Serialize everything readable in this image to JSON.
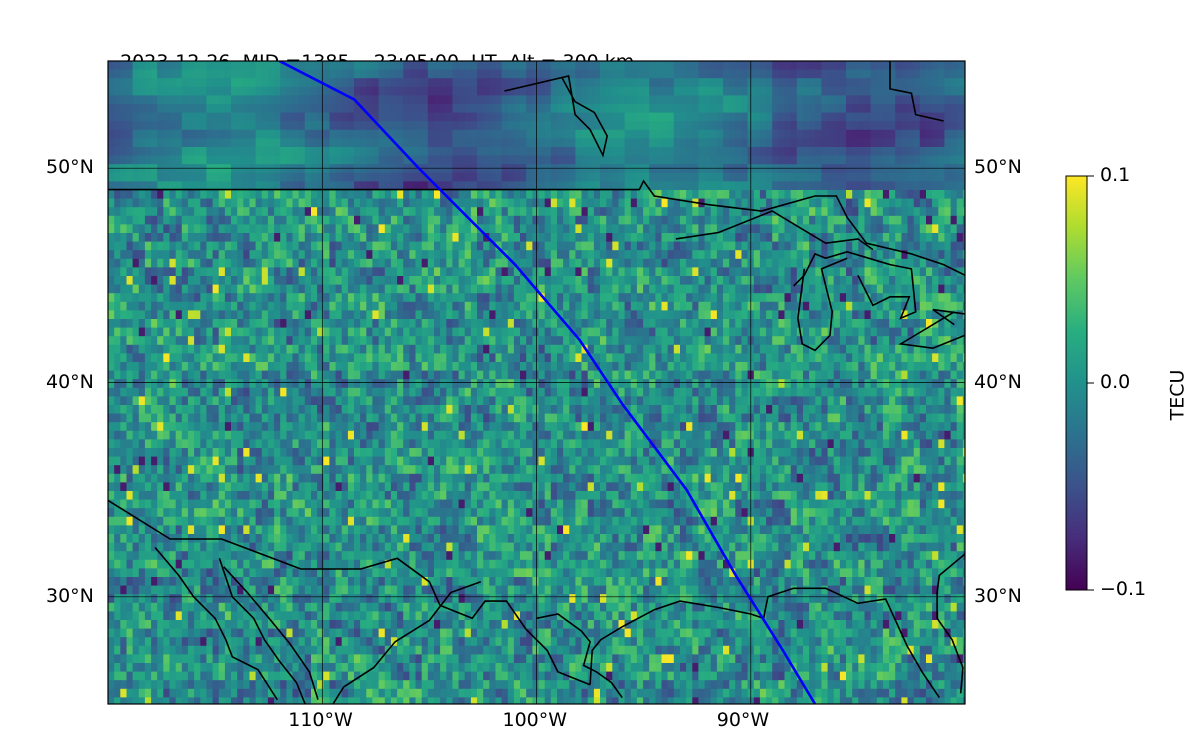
{
  "title": {
    "date": "2023-12-26",
    "mid": "MID =1385",
    "time": "23:05:00  UT",
    "alt": "Alt = 300 km"
  },
  "map": {
    "lon_range": [
      -120,
      -80
    ],
    "lat_range": [
      25,
      55
    ],
    "lat_ticks": [
      {
        "lat": 50,
        "label": "50°N"
      },
      {
        "lat": 40,
        "label": "40°N"
      },
      {
        "lat": 30,
        "label": "30°N"
      }
    ],
    "lon_ticks": [
      {
        "lon": -110,
        "label": "110°W"
      },
      {
        "lon": -100,
        "label": "100°W"
      },
      {
        "lon": -90,
        "label": "90°W"
      }
    ],
    "track_color": "#0000ff",
    "satellite_track": [
      [
        -112.0,
        55.0
      ],
      [
        -108.5,
        53.2
      ],
      [
        -105.5,
        50.0
      ],
      [
        -103.0,
        47.5
      ],
      [
        -101.0,
        45.5
      ],
      [
        -98.0,
        42.0
      ],
      [
        -96.0,
        39.0
      ],
      [
        -93.0,
        35.0
      ],
      [
        -90.7,
        31.0
      ],
      [
        -88.5,
        27.5
      ],
      [
        -87.0,
        25.0
      ]
    ]
  },
  "colorbar": {
    "label": "TECU",
    "min": -0.1,
    "max": 0.1,
    "ticks": [
      {
        "value": 0.1,
        "label": "0.1"
      },
      {
        "value": 0.0,
        "label": "0.0"
      },
      {
        "value": -0.1,
        "label": "−0.1"
      }
    ],
    "colormap": "viridis"
  }
}
